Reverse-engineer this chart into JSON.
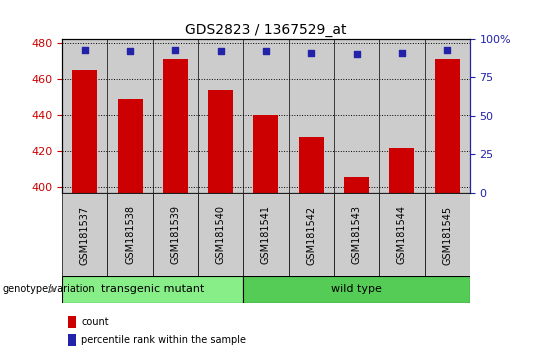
{
  "title": "GDS2823 / 1367529_at",
  "samples": [
    "GSM181537",
    "GSM181538",
    "GSM181539",
    "GSM181540",
    "GSM181541",
    "GSM181542",
    "GSM181543",
    "GSM181544",
    "GSM181545"
  ],
  "counts": [
    465,
    449,
    471,
    454,
    440,
    428,
    406,
    422,
    471
  ],
  "percentiles": [
    93,
    92,
    93,
    92,
    92,
    91,
    90,
    91,
    93
  ],
  "ylim_left": [
    397,
    482
  ],
  "ylim_right": [
    0,
    100
  ],
  "yticks_left": [
    400,
    420,
    440,
    460,
    480
  ],
  "yticks_right": [
    0,
    25,
    50,
    75,
    100
  ],
  "bar_color": "#CC0000",
  "dot_color": "#2222AA",
  "bar_width": 0.55,
  "transgenic_count": 4,
  "wild_count": 5,
  "transgenic_label": "transgenic mutant",
  "wild_label": "wild type",
  "transgenic_color": "#88EE88",
  "wild_color": "#55CC55",
  "group_label": "genotype/variation",
  "legend_count_label": "count",
  "legend_percentile_label": "percentile rank within the sample",
  "title_fontsize": 10,
  "tick_fontsize": 8,
  "label_fontsize": 8,
  "xticklabel_fontsize": 7,
  "ax_bg_color": "#CCCCCC",
  "left_tick_color": "#CC0000",
  "right_tick_color": "#2222AA",
  "right_tick_label_100": "100%"
}
